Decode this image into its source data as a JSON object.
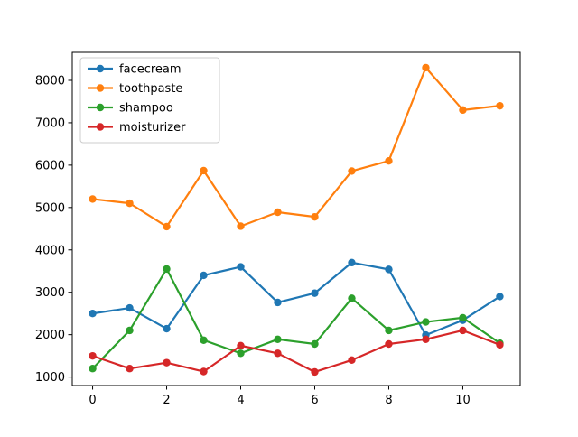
{
  "chart_data": {
    "type": "line",
    "title": "",
    "xlabel": "",
    "ylabel": "",
    "x": [
      0,
      1,
      2,
      3,
      4,
      5,
      6,
      7,
      8,
      9,
      10,
      11
    ],
    "xlim": [
      -0.55,
      11.55
    ],
    "ylim": [
      800,
      8660
    ],
    "x_ticks": [
      0,
      2,
      4,
      6,
      8,
      10
    ],
    "y_ticks": [
      1000,
      2000,
      3000,
      4000,
      5000,
      6000,
      7000,
      8000
    ],
    "grid": false,
    "legend_position": "upper-left",
    "series": [
      {
        "name": "facecream",
        "color": "#1f77b4",
        "values": [
          2500,
          2630,
          2140,
          3400,
          3600,
          2760,
          2980,
          3700,
          3540,
          1990,
          2340,
          2900
        ]
      },
      {
        "name": "toothpaste",
        "color": "#ff7f0e",
        "values": [
          5200,
          5100,
          4550,
          5870,
          4560,
          4890,
          4780,
          5860,
          6100,
          8300,
          7300,
          7400
        ]
      },
      {
        "name": "shampoo",
        "color": "#2ca02c",
        "values": [
          1200,
          2100,
          3550,
          1870,
          1560,
          1890,
          1780,
          2860,
          2100,
          2300,
          2400,
          1800
        ]
      },
      {
        "name": "moisturizer",
        "color": "#d62728",
        "values": [
          1500,
          1200,
          1340,
          1130,
          1740,
          1560,
          1120,
          1400,
          1780,
          1890,
          2100,
          1760
        ]
      }
    ]
  }
}
